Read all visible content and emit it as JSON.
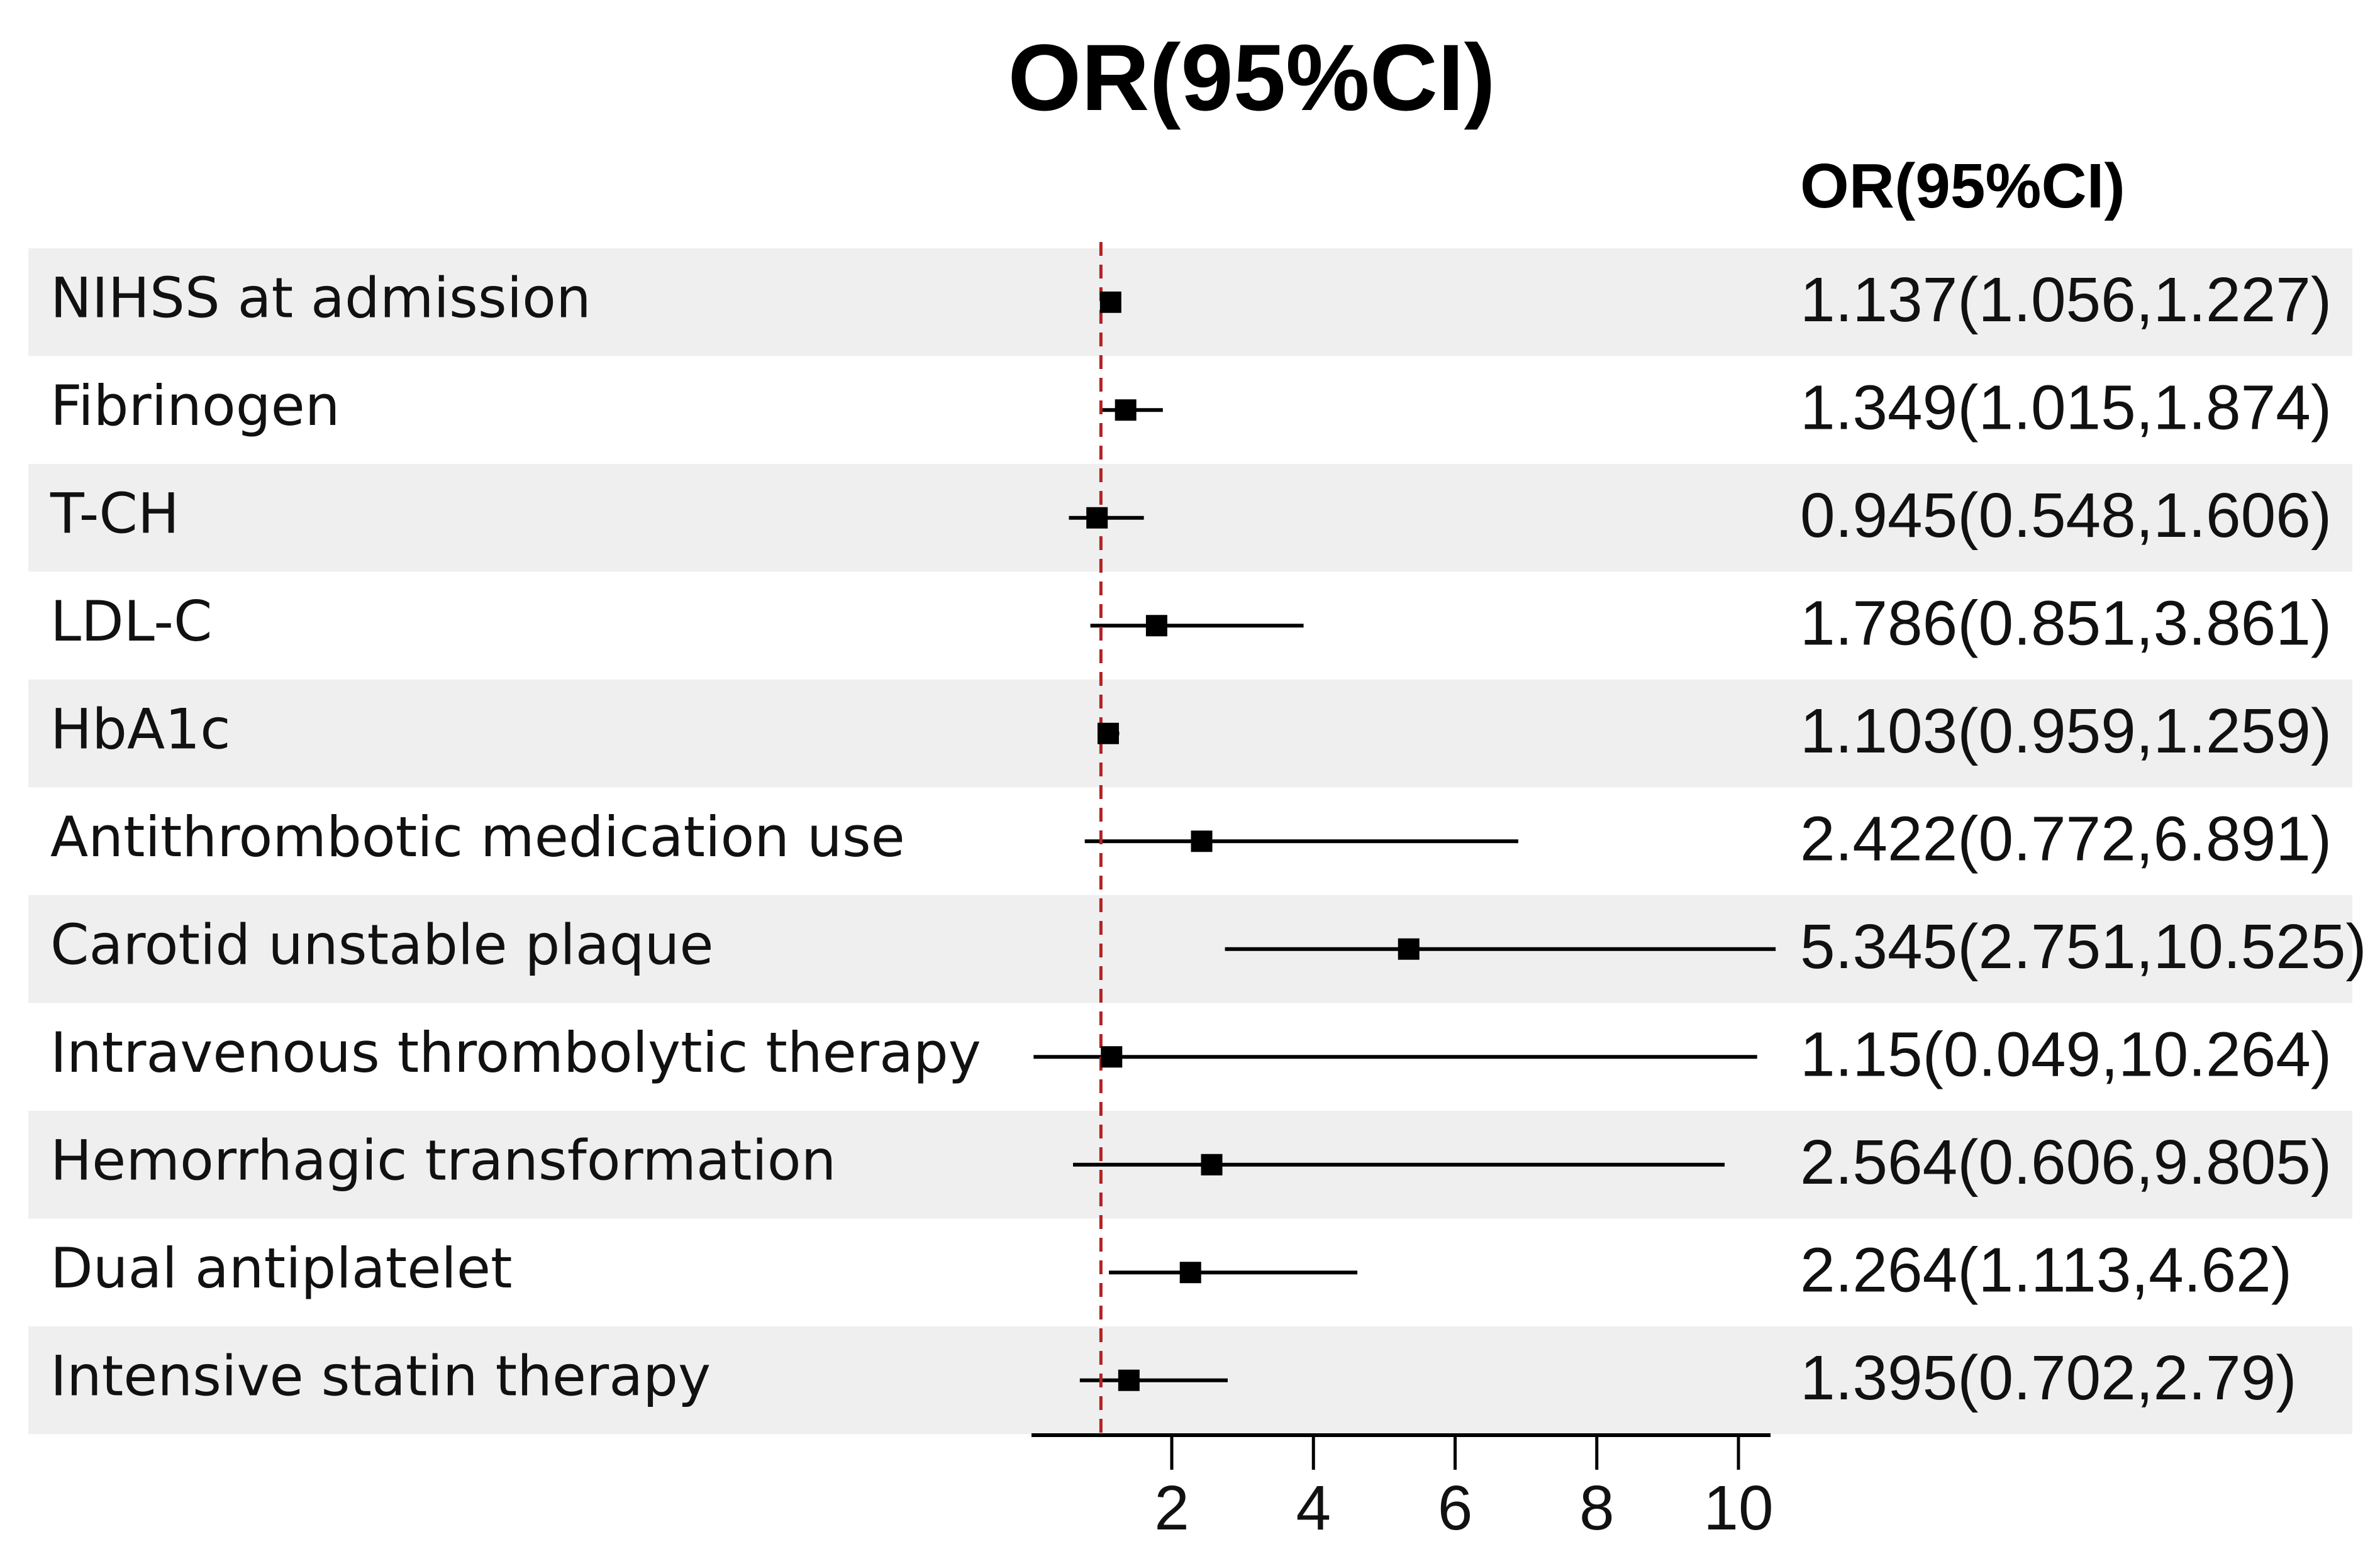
{
  "title": "OR(95%CI)",
  "or_column_header": "OR(95%CI)",
  "colors": {
    "row_shade": "#efefef",
    "row_plain": "#ffffff",
    "reference_line": "#b22222",
    "marker": "#000000",
    "ci_line": "#000000",
    "axis": "#000000"
  },
  "chart_data": {
    "type": "forest",
    "title": "OR(95%CI)",
    "xlabel": "",
    "ylabel": "",
    "reference_value": 1,
    "xlim": [
      -1.1,
      10.55
    ],
    "x_ticks": [
      2,
      4,
      6,
      8,
      10
    ],
    "grid": false,
    "legend": "none",
    "rows": [
      {
        "label": "NIHSS at admission",
        "or": 1.137,
        "lower": 1.056,
        "upper": 1.227,
        "or_text": "1.137(1.056,1.227)"
      },
      {
        "label": "Fibrinogen",
        "or": 1.349,
        "lower": 1.015,
        "upper": 1.874,
        "or_text": "1.349(1.015,1.874)"
      },
      {
        "label": "T-CH",
        "or": 0.945,
        "lower": 0.548,
        "upper": 1.606,
        "or_text": "0.945(0.548,1.606)"
      },
      {
        "label": "LDL-C",
        "or": 1.786,
        "lower": 0.851,
        "upper": 3.861,
        "or_text": "1.786(0.851,3.861)"
      },
      {
        "label": "HbA1c",
        "or": 1.103,
        "lower": 0.959,
        "upper": 1.259,
        "or_text": "1.103(0.959,1.259)"
      },
      {
        "label": "Antithrombotic medication use",
        "or": 2.422,
        "lower": 0.772,
        "upper": 6.891,
        "or_text": "2.422(0.772,6.891)"
      },
      {
        "label": "Carotid unstable plaque",
        "or": 5.345,
        "lower": 2.751,
        "upper": 10.525,
        "or_text": "5.345(2.751,10.525)"
      },
      {
        "label": "Intravenous thrombolytic therapy",
        "or": 1.15,
        "lower": 0.049,
        "upper": 10.264,
        "or_text": "1.15(0.049,10.264)"
      },
      {
        "label": "Hemorrhagic transformation",
        "or": 2.564,
        "lower": 0.606,
        "upper": 9.805,
        "or_text": "2.564(0.606,9.805)"
      },
      {
        "label": "Dual antiplatelet",
        "or": 2.264,
        "lower": 1.113,
        "upper": 4.62,
        "or_text": "2.264(1.113,4.62)"
      },
      {
        "label": "Intensive statin therapy",
        "or": 1.395,
        "lower": 0.702,
        "upper": 2.79,
        "or_text": "1.395(0.702,2.79)"
      }
    ]
  }
}
